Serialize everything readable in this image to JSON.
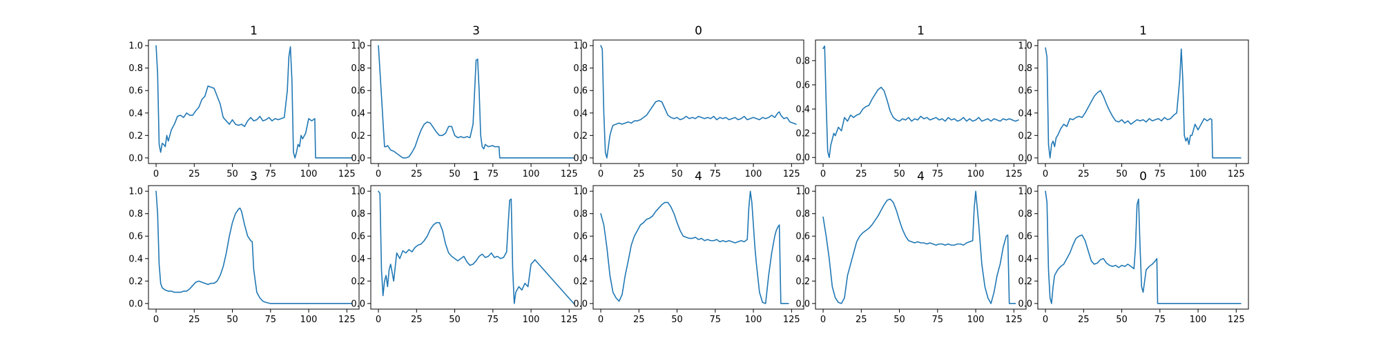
{
  "figure": {
    "line_color": "#1f77b4",
    "background": "#ffffff"
  },
  "chart_data": [
    {
      "type": "line",
      "title": "1",
      "xlim": [
        -5,
        133
      ],
      "ylim": [
        -0.05,
        1.05
      ],
      "xticks": [
        0,
        25,
        50,
        75,
        100,
        125
      ],
      "yticks": [
        0.0,
        0.2,
        0.4,
        0.6,
        0.8,
        1.0
      ],
      "x": [
        0,
        1,
        2,
        3,
        4,
        5,
        6,
        7,
        8,
        10,
        12,
        14,
        16,
        18,
        20,
        22,
        24,
        26,
        28,
        30,
        32,
        34,
        36,
        38,
        40,
        42,
        44,
        46,
        48,
        50,
        52,
        54,
        56,
        58,
        60,
        62,
        64,
        66,
        68,
        70,
        72,
        74,
        76,
        78,
        80,
        82,
        84,
        86,
        87,
        88,
        89,
        90,
        91,
        92,
        93,
        94,
        95,
        96,
        98,
        100,
        102,
        104,
        104.5,
        110,
        128
      ],
      "y": [
        1.0,
        0.75,
        0.12,
        0.05,
        0.13,
        0.12,
        0.1,
        0.2,
        0.15,
        0.25,
        0.3,
        0.37,
        0.38,
        0.36,
        0.4,
        0.38,
        0.38,
        0.42,
        0.45,
        0.52,
        0.55,
        0.64,
        0.63,
        0.62,
        0.55,
        0.48,
        0.36,
        0.33,
        0.3,
        0.34,
        0.3,
        0.29,
        0.3,
        0.28,
        0.33,
        0.36,
        0.33,
        0.34,
        0.37,
        0.33,
        0.34,
        0.36,
        0.33,
        0.35,
        0.34,
        0.35,
        0.36,
        0.6,
        0.9,
        0.99,
        0.7,
        0.05,
        0.0,
        0.05,
        0.12,
        0.1,
        0.2,
        0.17,
        0.22,
        0.35,
        0.33,
        0.35,
        0.0,
        0.0,
        0.0
      ]
    },
    {
      "type": "line",
      "title": "3",
      "xlim": [
        -5,
        133
      ],
      "ylim": [
        -0.05,
        1.05
      ],
      "xticks": [
        0,
        25,
        50,
        75,
        100,
        125
      ],
      "yticks": [
        0.0,
        0.2,
        0.4,
        0.6,
        0.8,
        1.0
      ],
      "x": [
        0,
        2,
        4,
        5,
        6,
        8,
        10,
        12,
        14,
        16,
        18,
        20,
        22,
        24,
        26,
        28,
        30,
        32,
        34,
        36,
        38,
        40,
        42,
        44,
        46,
        48,
        50,
        52,
        54,
        56,
        58,
        60,
        62,
        64,
        65,
        66,
        67,
        68,
        69,
        70,
        72,
        75,
        76,
        79,
        79.5,
        128
      ],
      "y": [
        1.0,
        0.55,
        0.1,
        0.1,
        0.11,
        0.07,
        0.06,
        0.04,
        0.02,
        0.0,
        0.0,
        0.01,
        0.05,
        0.1,
        0.18,
        0.25,
        0.3,
        0.32,
        0.31,
        0.27,
        0.23,
        0.2,
        0.2,
        0.22,
        0.28,
        0.28,
        0.2,
        0.18,
        0.19,
        0.18,
        0.19,
        0.18,
        0.3,
        0.87,
        0.88,
        0.6,
        0.2,
        0.1,
        0.08,
        0.12,
        0.1,
        0.11,
        0.1,
        0.1,
        0.0,
        0.0
      ]
    },
    {
      "type": "line",
      "title": "0",
      "xlim": [
        -5,
        133
      ],
      "ylim": [
        -0.05,
        1.05
      ],
      "xticks": [
        0,
        25,
        50,
        75,
        100,
        125
      ],
      "yticks": [
        0.0,
        0.2,
        0.4,
        0.6,
        0.8,
        1.0
      ],
      "x": [
        0,
        1,
        2,
        3,
        4,
        5,
        6,
        7,
        8,
        10,
        12,
        14,
        16,
        18,
        20,
        22,
        24,
        26,
        28,
        30,
        32,
        34,
        36,
        38,
        40,
        42,
        44,
        46,
        48,
        50,
        52,
        54,
        56,
        58,
        60,
        62,
        64,
        66,
        68,
        70,
        72,
        74,
        76,
        78,
        80,
        82,
        84,
        86,
        88,
        90,
        92,
        94,
        96,
        98,
        100,
        102,
        104,
        106,
        108,
        110,
        112,
        114,
        116,
        117,
        118,
        120,
        122,
        124,
        126,
        128
      ],
      "y": [
        1.0,
        0.97,
        0.4,
        0.05,
        0.0,
        0.1,
        0.2,
        0.25,
        0.29,
        0.3,
        0.31,
        0.3,
        0.31,
        0.32,
        0.31,
        0.33,
        0.33,
        0.34,
        0.36,
        0.38,
        0.42,
        0.46,
        0.5,
        0.51,
        0.5,
        0.44,
        0.38,
        0.36,
        0.35,
        0.36,
        0.34,
        0.35,
        0.37,
        0.35,
        0.36,
        0.35,
        0.37,
        0.36,
        0.35,
        0.36,
        0.35,
        0.37,
        0.34,
        0.36,
        0.35,
        0.36,
        0.34,
        0.35,
        0.36,
        0.34,
        0.35,
        0.37,
        0.34,
        0.35,
        0.36,
        0.35,
        0.34,
        0.36,
        0.35,
        0.36,
        0.38,
        0.36,
        0.4,
        0.41,
        0.38,
        0.35,
        0.36,
        0.32,
        0.31,
        0.3
      ]
    },
    {
      "type": "line",
      "title": "1",
      "xlim": [
        -5,
        133
      ],
      "ylim": [
        -0.05,
        0.97
      ],
      "xticks": [
        0,
        25,
        50,
        75,
        100,
        125
      ],
      "yticks": [
        0.0,
        0.2,
        0.4,
        0.6,
        0.8
      ],
      "x": [
        0,
        1,
        2,
        3,
        4,
        5,
        6,
        7,
        8,
        10,
        12,
        14,
        16,
        18,
        20,
        22,
        24,
        26,
        28,
        30,
        32,
        34,
        36,
        38,
        40,
        42,
        44,
        46,
        48,
        50,
        52,
        54,
        56,
        58,
        60,
        62,
        64,
        66,
        68,
        70,
        72,
        74,
        76,
        78,
        80,
        82,
        84,
        86,
        88,
        90,
        92,
        94,
        96,
        98,
        100,
        102,
        104,
        106,
        108,
        110,
        112,
        114,
        116,
        118,
        120,
        122,
        124,
        126,
        128
      ],
      "y": [
        0.9,
        0.92,
        0.45,
        0.05,
        0.0,
        0.1,
        0.15,
        0.2,
        0.18,
        0.25,
        0.22,
        0.33,
        0.3,
        0.35,
        0.33,
        0.35,
        0.36,
        0.4,
        0.42,
        0.43,
        0.48,
        0.52,
        0.56,
        0.58,
        0.55,
        0.47,
        0.38,
        0.33,
        0.31,
        0.3,
        0.32,
        0.31,
        0.33,
        0.3,
        0.32,
        0.31,
        0.34,
        0.32,
        0.33,
        0.31,
        0.32,
        0.33,
        0.31,
        0.32,
        0.3,
        0.33,
        0.31,
        0.32,
        0.3,
        0.31,
        0.33,
        0.3,
        0.32,
        0.3,
        0.31,
        0.33,
        0.3,
        0.31,
        0.32,
        0.3,
        0.32,
        0.31,
        0.3,
        0.32,
        0.31,
        0.32,
        0.31,
        0.3,
        0.31
      ]
    },
    {
      "type": "line",
      "title": "1",
      "xlim": [
        -5,
        133
      ],
      "ylim": [
        -0.05,
        1.05
      ],
      "xticks": [
        0,
        25,
        50,
        75,
        100,
        125
      ],
      "yticks": [
        0.0,
        0.2,
        0.4,
        0.6,
        0.8,
        1.0
      ],
      "x": [
        0,
        1,
        2,
        3,
        4,
        5,
        6,
        7,
        8,
        10,
        12,
        14,
        16,
        18,
        20,
        22,
        24,
        26,
        28,
        30,
        32,
        34,
        36,
        38,
        40,
        42,
        44,
        46,
        48,
        50,
        52,
        54,
        56,
        58,
        60,
        62,
        64,
        66,
        68,
        70,
        72,
        74,
        76,
        78,
        80,
        82,
        84,
        86,
        88,
        89,
        90,
        91,
        92,
        93,
        94,
        95,
        96,
        98,
        100,
        102,
        104,
        106,
        108,
        109,
        109.5,
        128
      ],
      "y": [
        0.98,
        0.9,
        0.12,
        0.0,
        0.12,
        0.15,
        0.1,
        0.18,
        0.2,
        0.26,
        0.3,
        0.28,
        0.35,
        0.34,
        0.36,
        0.37,
        0.36,
        0.4,
        0.45,
        0.5,
        0.55,
        0.58,
        0.6,
        0.55,
        0.48,
        0.42,
        0.37,
        0.33,
        0.32,
        0.34,
        0.31,
        0.33,
        0.3,
        0.32,
        0.34,
        0.33,
        0.34,
        0.32,
        0.35,
        0.33,
        0.34,
        0.35,
        0.33,
        0.36,
        0.34,
        0.35,
        0.38,
        0.4,
        0.7,
        0.97,
        0.7,
        0.2,
        0.15,
        0.18,
        0.12,
        0.2,
        0.2,
        0.3,
        0.25,
        0.3,
        0.35,
        0.33,
        0.35,
        0.34,
        0.0,
        0.0
      ]
    },
    {
      "type": "line",
      "title": "3",
      "xlim": [
        -5,
        133
      ],
      "ylim": [
        -0.05,
        1.05
      ],
      "xticks": [
        0,
        25,
        50,
        75,
        100,
        125
      ],
      "yticks": [
        0.0,
        0.2,
        0.4,
        0.6,
        0.8,
        1.0
      ],
      "x": [
        0,
        1,
        2,
        3,
        4,
        6,
        8,
        10,
        12,
        14,
        16,
        18,
        20,
        22,
        24,
        26,
        28,
        30,
        32,
        34,
        36,
        38,
        40,
        42,
        44,
        46,
        48,
        50,
        52,
        54,
        55,
        56,
        58,
        60,
        62,
        63,
        64,
        66,
        68,
        70,
        72,
        75,
        80,
        128
      ],
      "y": [
        1.0,
        0.8,
        0.35,
        0.18,
        0.14,
        0.12,
        0.11,
        0.11,
        0.1,
        0.1,
        0.1,
        0.11,
        0.11,
        0.13,
        0.16,
        0.19,
        0.2,
        0.19,
        0.18,
        0.17,
        0.18,
        0.18,
        0.2,
        0.25,
        0.33,
        0.45,
        0.6,
        0.72,
        0.8,
        0.84,
        0.85,
        0.82,
        0.7,
        0.6,
        0.56,
        0.55,
        0.3,
        0.1,
        0.05,
        0.02,
        0.01,
        0.0,
        0.0,
        0.0
      ]
    },
    {
      "type": "line",
      "title": "1",
      "xlim": [
        -5,
        133
      ],
      "ylim": [
        -0.05,
        1.05
      ],
      "xticks": [
        0,
        25,
        50,
        75,
        100,
        125
      ],
      "yticks": [
        0.0,
        0.2,
        0.4,
        0.6,
        0.8,
        1.0
      ],
      "x": [
        0,
        1,
        2,
        3,
        4,
        5,
        6,
        7,
        8,
        10,
        12,
        14,
        16,
        18,
        20,
        22,
        24,
        26,
        28,
        30,
        32,
        34,
        36,
        38,
        40,
        42,
        44,
        46,
        48,
        50,
        52,
        54,
        56,
        58,
        60,
        62,
        64,
        66,
        68,
        70,
        72,
        74,
        76,
        78,
        80,
        82,
        84,
        85,
        86,
        87,
        88,
        89,
        90,
        92,
        94,
        96,
        98,
        100,
        102,
        102.5,
        128
      ],
      "y": [
        1.0,
        0.98,
        0.3,
        0.07,
        0.2,
        0.25,
        0.15,
        0.3,
        0.35,
        0.2,
        0.45,
        0.4,
        0.47,
        0.45,
        0.48,
        0.46,
        0.5,
        0.52,
        0.53,
        0.56,
        0.6,
        0.66,
        0.7,
        0.72,
        0.72,
        0.65,
        0.53,
        0.45,
        0.42,
        0.4,
        0.38,
        0.4,
        0.42,
        0.37,
        0.34,
        0.35,
        0.38,
        0.42,
        0.44,
        0.41,
        0.42,
        0.45,
        0.41,
        0.42,
        0.4,
        0.41,
        0.46,
        0.7,
        0.92,
        0.93,
        0.3,
        0.0,
        0.1,
        0.15,
        0.12,
        0.18,
        0.15,
        0.35,
        0.38,
        0.39,
        0.0
      ]
    },
    {
      "type": "line",
      "title": "4",
      "xlim": [
        -5,
        133
      ],
      "ylim": [
        -0.05,
        1.05
      ],
      "xticks": [
        0,
        25,
        50,
        75,
        100,
        125
      ],
      "yticks": [
        0.0,
        0.2,
        0.4,
        0.6,
        0.8,
        1.0
      ],
      "x": [
        0,
        2,
        4,
        6,
        8,
        10,
        12,
        14,
        16,
        18,
        20,
        22,
        24,
        26,
        28,
        30,
        32,
        34,
        36,
        38,
        40,
        42,
        44,
        46,
        48,
        50,
        52,
        54,
        56,
        58,
        60,
        62,
        64,
        66,
        68,
        70,
        72,
        74,
        76,
        78,
        80,
        82,
        84,
        86,
        88,
        90,
        92,
        94,
        96,
        97,
        98,
        99,
        100,
        101,
        102,
        104,
        106,
        108,
        110,
        112,
        114,
        115,
        116,
        117,
        118,
        120,
        123
      ],
      "y": [
        0.8,
        0.7,
        0.5,
        0.25,
        0.1,
        0.05,
        0.02,
        0.08,
        0.25,
        0.38,
        0.52,
        0.6,
        0.65,
        0.7,
        0.72,
        0.75,
        0.76,
        0.78,
        0.82,
        0.85,
        0.88,
        0.9,
        0.9,
        0.86,
        0.8,
        0.72,
        0.65,
        0.6,
        0.59,
        0.58,
        0.58,
        0.59,
        0.57,
        0.58,
        0.56,
        0.57,
        0.56,
        0.56,
        0.57,
        0.55,
        0.56,
        0.55,
        0.56,
        0.55,
        0.54,
        0.55,
        0.56,
        0.55,
        0.57,
        0.85,
        1.0,
        0.9,
        0.7,
        0.5,
        0.35,
        0.1,
        0.01,
        0.0,
        0.25,
        0.45,
        0.6,
        0.65,
        0.68,
        0.7,
        0.0,
        0.0,
        0.0
      ]
    },
    {
      "type": "line",
      "title": "4",
      "xlim": [
        -5,
        133
      ],
      "ylim": [
        -0.05,
        1.05
      ],
      "xticks": [
        0,
        25,
        50,
        75,
        100,
        125
      ],
      "yticks": [
        0.0,
        0.2,
        0.4,
        0.6,
        0.8,
        1.0
      ],
      "x": [
        0,
        2,
        4,
        6,
        8,
        10,
        12,
        14,
        16,
        18,
        20,
        22,
        24,
        26,
        28,
        30,
        32,
        34,
        36,
        38,
        40,
        42,
        44,
        46,
        48,
        50,
        52,
        54,
        56,
        58,
        60,
        62,
        64,
        66,
        68,
        70,
        72,
        74,
        76,
        78,
        80,
        82,
        84,
        86,
        88,
        90,
        92,
        94,
        96,
        98,
        99,
        100,
        101,
        102,
        104,
        106,
        108,
        110,
        112,
        114,
        116,
        118,
        120,
        121,
        122,
        124,
        126
      ],
      "y": [
        0.77,
        0.6,
        0.4,
        0.15,
        0.05,
        0.01,
        0.0,
        0.05,
        0.25,
        0.35,
        0.45,
        0.55,
        0.6,
        0.63,
        0.65,
        0.67,
        0.7,
        0.74,
        0.78,
        0.83,
        0.88,
        0.92,
        0.93,
        0.9,
        0.83,
        0.74,
        0.66,
        0.6,
        0.56,
        0.55,
        0.54,
        0.55,
        0.54,
        0.54,
        0.53,
        0.54,
        0.53,
        0.52,
        0.53,
        0.53,
        0.52,
        0.53,
        0.52,
        0.52,
        0.53,
        0.53,
        0.52,
        0.54,
        0.55,
        0.56,
        0.85,
        1.0,
        0.85,
        0.7,
        0.35,
        0.15,
        0.05,
        0.0,
        0.1,
        0.25,
        0.35,
        0.5,
        0.6,
        0.61,
        0.0,
        0.0,
        0.0
      ]
    },
    {
      "type": "line",
      "title": "0",
      "xlim": [
        -5,
        133
      ],
      "ylim": [
        -0.05,
        1.05
      ],
      "xticks": [
        0,
        25,
        50,
        75,
        100,
        125
      ],
      "yticks": [
        0.0,
        0.2,
        0.4,
        0.6,
        0.8,
        1.0
      ],
      "x": [
        0,
        1,
        2,
        3,
        4,
        5,
        6,
        8,
        10,
        12,
        14,
        16,
        18,
        20,
        22,
        24,
        26,
        28,
        30,
        32,
        34,
        36,
        38,
        40,
        42,
        44,
        46,
        48,
        50,
        52,
        54,
        56,
        58,
        59,
        60,
        61,
        62,
        63,
        64,
        66,
        68,
        70,
        72,
        73,
        73.5,
        128
      ],
      "y": [
        1.0,
        0.9,
        0.3,
        0.05,
        0.0,
        0.15,
        0.25,
        0.3,
        0.33,
        0.35,
        0.4,
        0.45,
        0.52,
        0.58,
        0.6,
        0.61,
        0.56,
        0.47,
        0.38,
        0.35,
        0.36,
        0.39,
        0.4,
        0.36,
        0.34,
        0.33,
        0.34,
        0.32,
        0.34,
        0.33,
        0.35,
        0.33,
        0.31,
        0.5,
        0.88,
        0.93,
        0.5,
        0.15,
        0.1,
        0.3,
        0.33,
        0.35,
        0.38,
        0.4,
        0.0,
        0.0
      ]
    }
  ]
}
